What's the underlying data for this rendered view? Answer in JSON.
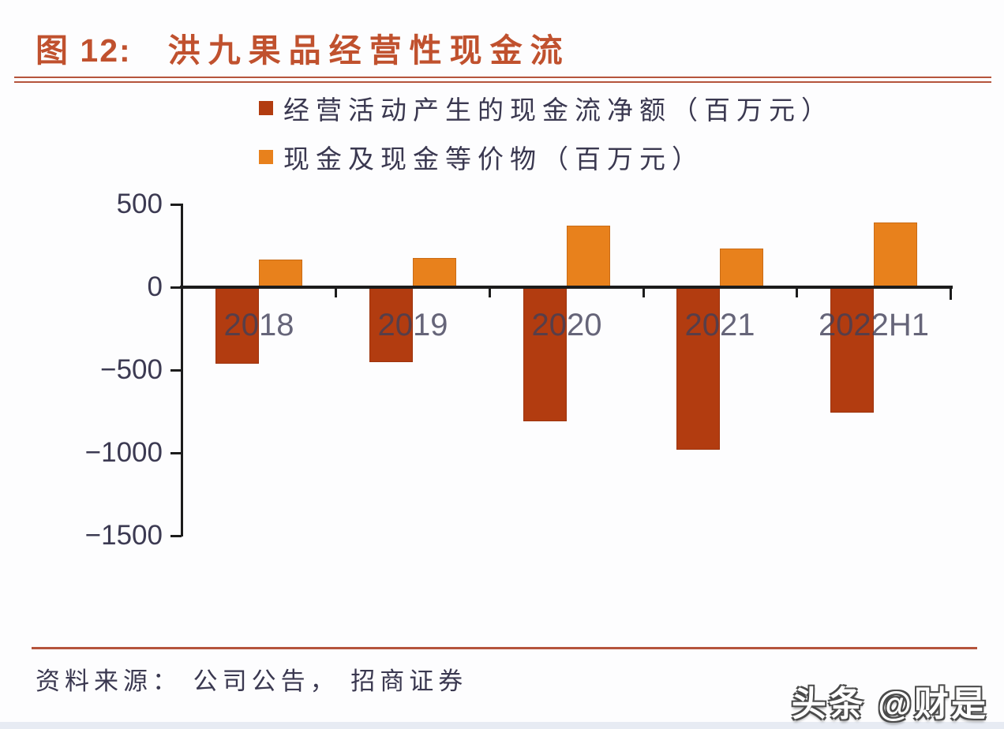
{
  "header": {
    "figure_label": "图 12:",
    "title": "洪九果品经营性现金流"
  },
  "footer": {
    "source": "资料来源： 公司公告， 招商证券",
    "watermark": "头条 @财是"
  },
  "colors": {
    "title_red": "#C0512E",
    "rule_red": "#B5543C",
    "series1": "#B23C10",
    "series2": "#E8811C",
    "axis": "#1C1C1C",
    "text_dark": "#3A3850",
    "bottom_strip": "#E7EBF3"
  },
  "chart_data": {
    "type": "bar",
    "title": "洪九果品经营性现金流",
    "categories": [
      "2018",
      "2019",
      "2020",
      "2021",
      "2022H1"
    ],
    "series": [
      {
        "name": "经营活动产生的现金流净额（百万元）",
        "color": "#B23C10",
        "values": [
          -460,
          -450,
          -810,
          -980,
          -755
        ]
      },
      {
        "name": "现金及现金等价物（百万元）",
        "color": "#E8811C",
        "values": [
          165,
          175,
          370,
          235,
          390
        ]
      }
    ],
    "ylim": [
      -1500,
      500
    ],
    "yticks": [
      500,
      0,
      -500,
      -1000,
      -1500
    ],
    "ytick_labels": [
      "500",
      "0",
      "−500",
      "−1000",
      "−1500"
    ],
    "unit": "百万元",
    "legend_position": "top",
    "grid": false
  }
}
